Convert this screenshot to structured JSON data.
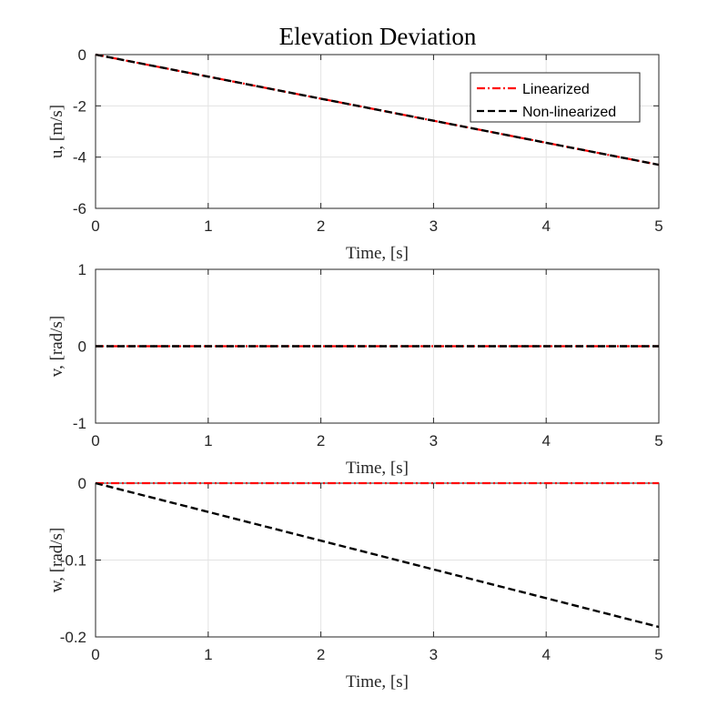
{
  "figure": {
    "title": "Elevation Deviation"
  },
  "legend": {
    "placement": "top-right of first subplot",
    "entries": [
      {
        "label": "Linearized",
        "color": "#ff0000",
        "style": "dash-dot"
      },
      {
        "label": "Non-linearized",
        "color": "#000000",
        "style": "dashed"
      }
    ]
  },
  "chart_data": [
    {
      "type": "line",
      "title": "Elevation Deviation",
      "xlabel": "Time, [s]",
      "ylabel": "u, [m/s]",
      "xlim": [
        0,
        5
      ],
      "ylim": [
        -6,
        0
      ],
      "xticks": [
        0,
        1,
        2,
        3,
        4,
        5
      ],
      "yticks": [
        -6,
        -4,
        -2,
        0
      ],
      "ytick_labels": [
        "-6",
        "-4",
        "-2",
        "0"
      ],
      "grid": true,
      "legend": "top-right",
      "series": [
        {
          "name": "Linearized",
          "color": "#ff0000",
          "style": "dash-dot",
          "x": [
            0,
            5
          ],
          "y": [
            0,
            -4.3
          ]
        },
        {
          "name": "Non-linearized",
          "color": "#000000",
          "style": "dashed",
          "x": [
            0,
            5
          ],
          "y": [
            0,
            -4.3
          ]
        }
      ]
    },
    {
      "type": "line",
      "xlabel": "Time, [s]",
      "ylabel": "v, [rad/s]",
      "xlim": [
        0,
        5
      ],
      "ylim": [
        -1,
        1
      ],
      "xticks": [
        0,
        1,
        2,
        3,
        4,
        5
      ],
      "yticks": [
        -1,
        0,
        1
      ],
      "ytick_labels": [
        "-1",
        "0",
        "1"
      ],
      "grid": true,
      "series": [
        {
          "name": "Linearized",
          "color": "#ff0000",
          "style": "dash-dot",
          "x": [
            0,
            5
          ],
          "y": [
            0,
            0
          ]
        },
        {
          "name": "Non-linearized",
          "color": "#000000",
          "style": "dashed",
          "x": [
            0,
            5
          ],
          "y": [
            0,
            0
          ]
        }
      ]
    },
    {
      "type": "line",
      "xlabel": "Time, [s]",
      "ylabel": "w, [rad/s]",
      "xlim": [
        0,
        5
      ],
      "ylim": [
        -0.2,
        0
      ],
      "xticks": [
        0,
        1,
        2,
        3,
        4,
        5
      ],
      "yticks": [
        -0.2,
        -0.1,
        0
      ],
      "ytick_labels": [
        "-0.2",
        "-0.1",
        "0"
      ],
      "grid": true,
      "series": [
        {
          "name": "Linearized",
          "color": "#ff0000",
          "style": "dash-dot",
          "x": [
            0,
            5
          ],
          "y": [
            0,
            0
          ]
        },
        {
          "name": "Non-linearized",
          "color": "#000000",
          "style": "dashed",
          "x": [
            0,
            5
          ],
          "y": [
            0,
            -0.187
          ]
        }
      ]
    }
  ]
}
